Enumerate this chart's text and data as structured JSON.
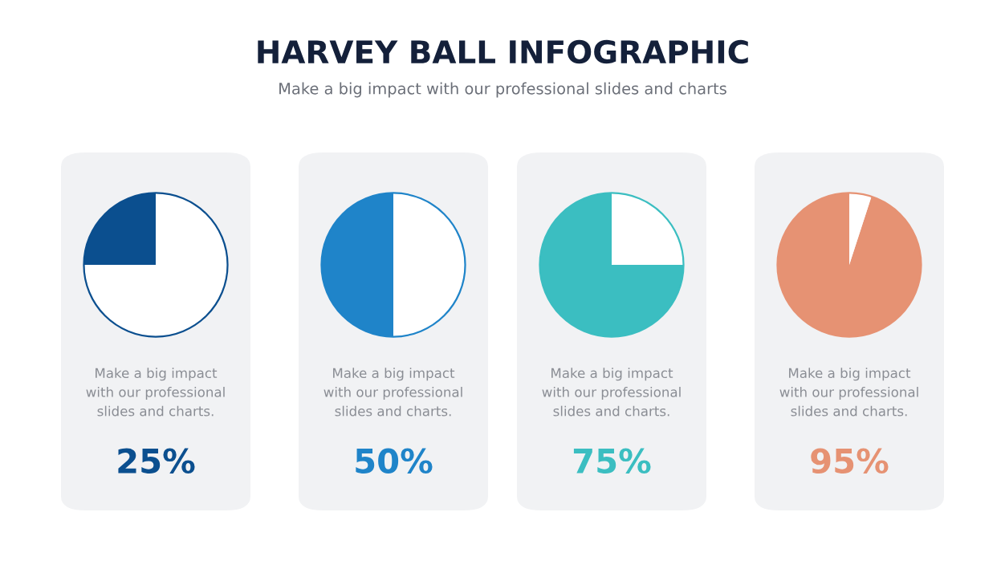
{
  "chart_data": [
    {
      "type": "pie",
      "title": "HARVEY BALL INFOGRAPHIC",
      "subtitle": "Make a big impact with our professional slides and charts",
      "categories": [
        null,
        null
      ],
      "values": [
        25,
        75
      ],
      "colors": [
        "#0b4f8f",
        "#ffffff"
      ],
      "annotations": [
        "Make a big impact\nwith our professional\nslides and charts.",
        "25%"
      ]
    },
    {
      "type": "pie",
      "categories": [
        null,
        null
      ],
      "values": [
        50,
        50
      ],
      "colors": [
        "#1f84c9",
        "#ffffff"
      ],
      "annotations": [
        "Make a big impact\nwith our professional\nslides and charts.",
        "50%"
      ]
    },
    {
      "type": "pie",
      "categories": [
        null,
        null
      ],
      "values": [
        75,
        25
      ],
      "colors": [
        "#3bbec1",
        "#ffffff"
      ],
      "annotations": [
        "Make a big impact\nwith our professional\nslides and charts.",
        "75%"
      ]
    },
    {
      "type": "pie",
      "categories": [
        null,
        null
      ],
      "values": [
        95,
        5
      ],
      "colors": [
        "#e69273",
        "#ffffff"
      ],
      "annotations": [
        "Make a big impact\nwith our professional\nslides and charts.",
        "95%"
      ]
    }
  ]
}
